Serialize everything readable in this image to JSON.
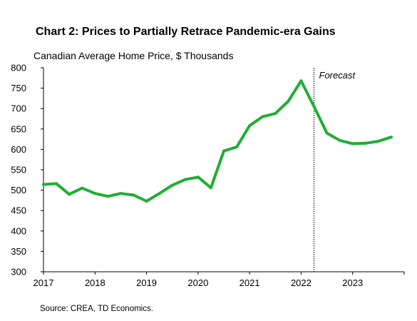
{
  "chart_data": {
    "type": "line",
    "title": "Chart 2: Prices to Partially Retrace Pandemic-era Gains",
    "subtitle": "Canadian Average Home Price, $ Thousands",
    "source": "Source: CREA, TD Economics.",
    "annotation": "Forecast",
    "forecast_start": 2022.25,
    "ylim": [
      300,
      800
    ],
    "xlim": [
      2017,
      2024
    ],
    "yticks": [
      300,
      350,
      400,
      450,
      500,
      550,
      600,
      650,
      700,
      750,
      800
    ],
    "xticks": [
      2017,
      2018,
      2019,
      2020,
      2021,
      2022,
      2023
    ],
    "xtick_labels": [
      "2017",
      "2018",
      "2019",
      "2020",
      "2021",
      "2022",
      "2023"
    ],
    "grid": false,
    "series": [
      {
        "color": "#1fae33",
        "x": [
          2017.0,
          2017.25,
          2017.5,
          2017.75,
          2018.0,
          2018.25,
          2018.5,
          2018.75,
          2019.0,
          2019.25,
          2019.5,
          2019.75,
          2020.0,
          2020.25,
          2020.5,
          2020.75,
          2021.0,
          2021.25,
          2021.5,
          2021.75,
          2022.0,
          2022.25,
          2022.5,
          2022.75,
          2023.0,
          2023.25,
          2023.5,
          2023.75
        ],
        "values": [
          514,
          516,
          490,
          505,
          492,
          485,
          492,
          488,
          473,
          492,
          512,
          526,
          532,
          506,
          596,
          606,
          658,
          680,
          688,
          718,
          768,
          705,
          640,
          622,
          614,
          615,
          620,
          630
        ]
      }
    ]
  }
}
